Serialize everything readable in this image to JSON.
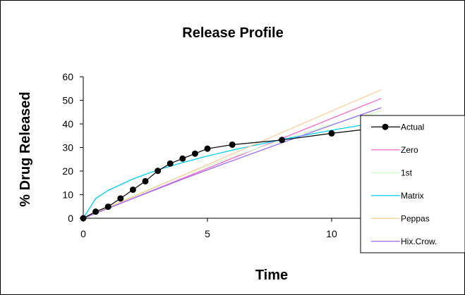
{
  "chart_data": {
    "type": "line",
    "title": "Release Profile",
    "xlabel": "Time",
    "ylabel": "% Drug Released",
    "xlim": [
      0,
      12.5
    ],
    "ylim": [
      0,
      60
    ],
    "xticks": [
      0,
      5,
      10
    ],
    "yticks": [
      0,
      10,
      20,
      30,
      40,
      50,
      60
    ],
    "xtick_labels": [
      "0",
      "5",
      "10"
    ],
    "ytick_labels": [
      "0",
      "10",
      "20",
      "30",
      "40",
      "50",
      "60"
    ],
    "grid": false,
    "legend_position": "right",
    "series": [
      {
        "name": "Actual",
        "color": "#000000",
        "marker": "circle",
        "points": [
          [
            0,
            0
          ],
          [
            0.5,
            2.8
          ],
          [
            1,
            4.9
          ],
          [
            1.5,
            8.4
          ],
          [
            2,
            12.1
          ],
          [
            2.5,
            15.7
          ],
          [
            3,
            20.1
          ],
          [
            3.5,
            23.2
          ],
          [
            4,
            25.3
          ],
          [
            4.5,
            27.4
          ],
          [
            5,
            29.5
          ],
          [
            6,
            31.2
          ],
          [
            8,
            33.2
          ],
          [
            10,
            36.0
          ],
          [
            12,
            38.5
          ]
        ]
      },
      {
        "name": "Zero",
        "color": "#ff66cc",
        "points": [
          [
            0,
            0
          ],
          [
            12,
            50.8
          ]
        ]
      },
      {
        "name": "1st",
        "color": "#ccffcc",
        "points": [
          [
            0,
            0
          ],
          [
            2,
            9.5
          ],
          [
            4,
            18.2
          ],
          [
            6,
            26.0
          ],
          [
            8,
            33.2
          ],
          [
            10,
            39.8
          ],
          [
            12,
            45.5
          ]
        ]
      },
      {
        "name": "Matrix",
        "color": "#00ccff",
        "points": [
          [
            0,
            0
          ],
          [
            0.5,
            8.4
          ],
          [
            1,
            11.8
          ],
          [
            2,
            16.7
          ],
          [
            3,
            20.5
          ],
          [
            4,
            23.6
          ],
          [
            5,
            26.4
          ],
          [
            6,
            28.9
          ],
          [
            8,
            33.4
          ],
          [
            10,
            37.3
          ],
          [
            12,
            40.9
          ]
        ]
      },
      {
        "name": "Peppas",
        "color": "#ffcc99",
        "points": [
          [
            0,
            0
          ],
          [
            12,
            54.5
          ]
        ]
      },
      {
        "name": "Hix.Crow.",
        "color": "#9966ff",
        "points": [
          [
            0,
            0
          ],
          [
            2,
            8.4
          ],
          [
            4,
            16.6
          ],
          [
            6,
            24.4
          ],
          [
            8,
            32.0
          ],
          [
            10,
            39.5
          ],
          [
            12,
            46.9
          ]
        ]
      }
    ]
  }
}
